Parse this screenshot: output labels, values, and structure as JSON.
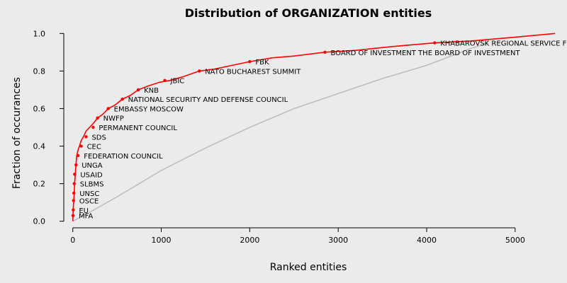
{
  "chart_data": {
    "type": "line",
    "title": "Distribution of ORGANIZATION entities",
    "xlabel": "Ranked entities",
    "ylabel": "Fraction of occurances",
    "xlim": [
      -150,
      5450
    ],
    "ylim": [
      -0.02,
      1.02
    ],
    "x_ticks": [
      0,
      1000,
      2000,
      3000,
      4000,
      5000
    ],
    "y_ticks": [
      0.0,
      0.2,
      0.4,
      0.6,
      0.8,
      1.0
    ],
    "x_tick_labels": [
      "0",
      "1000",
      "2000",
      "3000",
      "4000",
      "5000"
    ],
    "y_tick_labels": [
      "0.0",
      "0.2",
      "0.4",
      "0.6",
      "0.8",
      "1.0"
    ],
    "grid": false,
    "legend": "none",
    "colors": {
      "background": "#ebebeb",
      "red_series": "#ff0000",
      "gray_series": "#bebebe",
      "axis": "#000000"
    },
    "series": [
      {
        "key": "red",
        "color": "#ff0000",
        "marker": "point",
        "x": [
          0,
          2,
          5,
          8,
          12,
          16,
          21,
          28,
          36,
          45,
          60,
          75,
          95,
          120,
          150,
          190,
          230,
          280,
          340,
          400,
          480,
          560,
          650,
          740,
          850,
          980,
          1100,
          1250,
          1430,
          1600,
          1800,
          2000,
          2250,
          2500,
          2850,
          3200,
          3600,
          4090,
          4500,
          5000,
          5450
        ],
        "y": [
          0.0,
          0.03,
          0.06,
          0.09,
          0.11,
          0.15,
          0.2,
          0.25,
          0.3,
          0.35,
          0.38,
          0.4,
          0.43,
          0.45,
          0.48,
          0.5,
          0.52,
          0.55,
          0.57,
          0.6,
          0.62,
          0.65,
          0.67,
          0.7,
          0.72,
          0.74,
          0.75,
          0.77,
          0.8,
          0.81,
          0.83,
          0.85,
          0.87,
          0.88,
          0.9,
          0.91,
          0.93,
          0.95,
          0.96,
          0.98,
          1.0
        ]
      },
      {
        "key": "gray",
        "color": "#bebebe",
        "marker": "none",
        "x": [
          0,
          200,
          500,
          1000,
          1500,
          2000,
          2500,
          3000,
          3500,
          4000,
          4500,
          4700
        ],
        "y": [
          0.0,
          0.05,
          0.13,
          0.27,
          0.39,
          0.5,
          0.6,
          0.68,
          0.76,
          0.83,
          0.92,
          0.95
        ]
      }
    ],
    "labels": [
      {
        "text": "MFA",
        "x": 2,
        "y": 0.03
      },
      {
        "text": "EU",
        "x": 5,
        "y": 0.06
      },
      {
        "text": "OSCE",
        "x": 8,
        "y": 0.11
      },
      {
        "text": "UNSC",
        "x": 12,
        "y": 0.15
      },
      {
        "text": "SLBMS",
        "x": 16,
        "y": 0.2
      },
      {
        "text": "USAID",
        "x": 21,
        "y": 0.25
      },
      {
        "text": "UNGA",
        "x": 36,
        "y": 0.3
      },
      {
        "text": "FEDERATION COUNCIL",
        "x": 60,
        "y": 0.35
      },
      {
        "text": "CEC",
        "x": 95,
        "y": 0.4
      },
      {
        "text": "SDS",
        "x": 150,
        "y": 0.45
      },
      {
        "text": "PERMANENT COUNCIL",
        "x": 230,
        "y": 0.5
      },
      {
        "text": "NWFP",
        "x": 280,
        "y": 0.55
      },
      {
        "text": "EMBASSY MOSCOW",
        "x": 400,
        "y": 0.6
      },
      {
        "text": "NATIONAL SECURITY AND DEFENSE COUNCIL",
        "x": 560,
        "y": 0.65
      },
      {
        "text": "KNB",
        "x": 740,
        "y": 0.7
      },
      {
        "text": "JBIC",
        "x": 1040,
        "y": 0.75
      },
      {
        "text": "NATO BUCHAREST SUMMIT",
        "x": 1430,
        "y": 0.8
      },
      {
        "text": "FBK",
        "x": 2000,
        "y": 0.85
      },
      {
        "text": "BOARD OF INVESTMENT THE BOARD OF INVESTMENT",
        "x": 2850,
        "y": 0.9
      },
      {
        "text": "KHABAROVSK REGIONAL SERVICE FO",
        "x": 4090,
        "y": 0.95
      }
    ]
  }
}
